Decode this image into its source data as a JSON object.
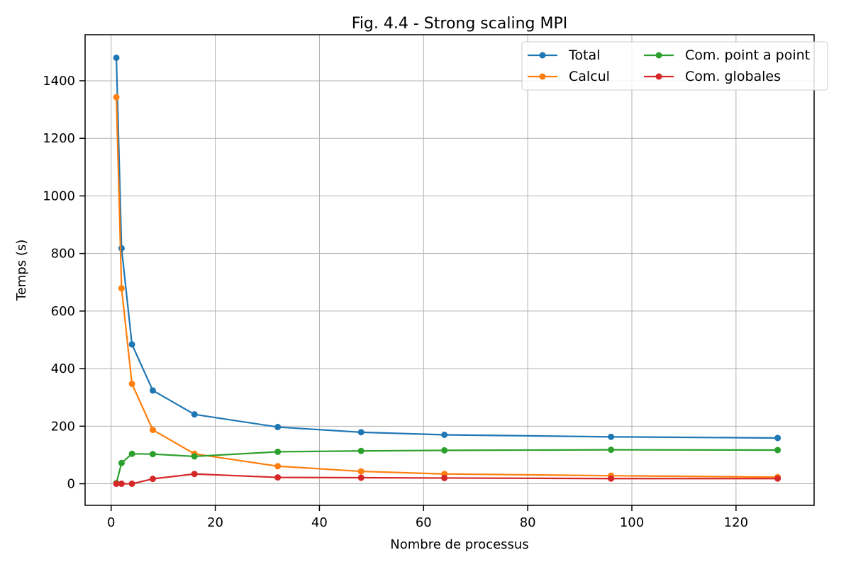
{
  "chart_data": {
    "type": "line",
    "title": "Fig. 4.4 - Strong scaling MPI",
    "xlabel": "Nombre de processus",
    "ylabel": "Temps (s)",
    "xlim": [
      -5,
      135
    ],
    "ylim": [
      -75,
      1560
    ],
    "x_ticks": [
      0,
      20,
      40,
      60,
      80,
      100,
      120
    ],
    "y_ticks": [
      0,
      200,
      400,
      600,
      800,
      1000,
      1200,
      1400
    ],
    "grid": true,
    "legend_position": "top-right",
    "x": [
      1,
      2,
      4,
      8,
      16,
      32,
      48,
      64,
      96,
      128
    ],
    "series": [
      {
        "name": "Total",
        "color": "#1f77b4",
        "values": [
          1480,
          818,
          484,
          324,
          241,
          197,
          179,
          170,
          163,
          159
        ]
      },
      {
        "name": "Calcul",
        "color": "#ff7f0e",
        "values": [
          1343,
          679,
          347,
          187,
          104,
          61,
          43,
          34,
          28,
          23
        ]
      },
      {
        "name": "Com. point a point",
        "color": "#2ca02c",
        "values": [
          2,
          72,
          104,
          103,
          95,
          111,
          114,
          116,
          118,
          117
        ]
      },
      {
        "name": "Com. globales",
        "color": "#d62728",
        "values": [
          0,
          0,
          0,
          17,
          34,
          22,
          21,
          20,
          18,
          18
        ]
      }
    ]
  }
}
